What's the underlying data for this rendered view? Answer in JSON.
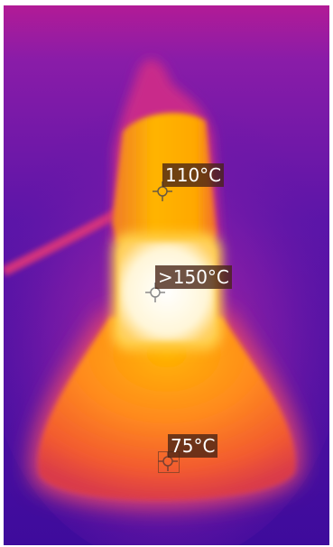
{
  "readings": [
    {
      "label": "110°C"
    },
    {
      "label": ">150°C"
    },
    {
      "label": "75°C"
    }
  ],
  "colors": {
    "cold": "#3a0a9a",
    "cool": "#6a1ab0",
    "mid": "#c2258e",
    "warm": "#f0612e",
    "hot": "#ffb000",
    "hottest": "#fffbe8",
    "label_bg": "#46231488"
  }
}
